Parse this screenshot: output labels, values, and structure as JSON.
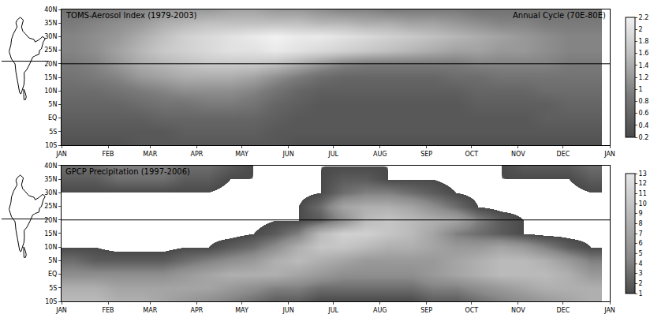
{
  "chart_data": [
    {
      "type": "heatmap",
      "title": "TOMS-Aerosol Index (1979-2003)",
      "subtitle": "Annual Cycle (70E-80E)",
      "x": [
        7.5,
        22.5,
        37.5,
        52.5,
        67.5,
        82.5,
        97.5,
        112.5,
        127.5,
        142.5,
        157.5,
        172.5,
        187.5,
        202.5,
        217.5,
        232.5,
        247.5,
        262.5,
        277.5,
        292.5,
        307.5,
        322.5,
        337.5,
        352.5
      ],
      "y": [
        -10,
        -5,
        0,
        5,
        10,
        15,
        20,
        25,
        30,
        35,
        40
      ],
      "z": [
        [
          0.3,
          0.3,
          0.3,
          0.4,
          0.4,
          0.4,
          0.4,
          0.4,
          0.4,
          0.4,
          0.3,
          0.3,
          0.3,
          0.3,
          0.3,
          0.3,
          0.3,
          0.3,
          0.3,
          0.3,
          0.3,
          0.3,
          0.3,
          0.3
        ],
        [
          0.4,
          0.4,
          0.4,
          0.4,
          0.4,
          0.5,
          0.5,
          0.5,
          0.5,
          0.4,
          0.4,
          0.4,
          0.4,
          0.4,
          0.4,
          0.4,
          0.4,
          0.4,
          0.4,
          0.4,
          0.4,
          0.4,
          0.4,
          0.4
        ],
        [
          0.5,
          0.5,
          0.5,
          0.5,
          0.6,
          0.6,
          0.6,
          0.6,
          0.6,
          0.5,
          0.4,
          0.4,
          0.4,
          0.4,
          0.4,
          0.4,
          0.4,
          0.4,
          0.4,
          0.4,
          0.4,
          0.5,
          0.5,
          0.5
        ],
        [
          0.6,
          0.6,
          0.6,
          0.7,
          0.8,
          0.8,
          0.9,
          0.9,
          0.8,
          0.6,
          0.5,
          0.4,
          0.4,
          0.4,
          0.4,
          0.4,
          0.4,
          0.4,
          0.5,
          0.5,
          0.5,
          0.5,
          0.6,
          0.6
        ],
        [
          0.7,
          0.7,
          0.8,
          0.9,
          1.0,
          1.1,
          1.1,
          1.1,
          1.0,
          0.8,
          0.6,
          0.5,
          0.5,
          0.5,
          0.5,
          0.5,
          0.5,
          0.5,
          0.6,
          0.6,
          0.6,
          0.7,
          0.7,
          0.7
        ],
        [
          0.8,
          0.9,
          1.0,
          1.2,
          1.3,
          1.4,
          1.4,
          1.4,
          1.3,
          1.1,
          0.9,
          0.7,
          0.6,
          0.6,
          0.6,
          0.6,
          0.6,
          0.7,
          0.7,
          0.8,
          0.8,
          0.8,
          0.8,
          0.8
        ],
        [
          0.9,
          1.0,
          1.2,
          1.4,
          1.5,
          1.6,
          1.7,
          1.7,
          1.7,
          1.6,
          1.4,
          1.2,
          1.0,
          0.9,
          0.9,
          0.9,
          0.9,
          0.9,
          1.0,
          1.0,
          1.0,
          1.0,
          0.9,
          0.9
        ],
        [
          1.0,
          1.1,
          1.3,
          1.5,
          1.7,
          1.8,
          1.9,
          2.0,
          2.0,
          2.1,
          2.0,
          1.9,
          1.8,
          1.7,
          1.6,
          1.5,
          1.4,
          1.3,
          1.3,
          1.2,
          1.2,
          1.1,
          1.0,
          1.0
        ],
        [
          1.0,
          1.1,
          1.2,
          1.4,
          1.6,
          1.8,
          1.9,
          2.0,
          2.1,
          2.2,
          2.1,
          2.1,
          2.0,
          1.9,
          1.8,
          1.7,
          1.6,
          1.5,
          1.4,
          1.3,
          1.2,
          1.1,
          1.0,
          1.0
        ],
        [
          0.9,
          1.0,
          1.1,
          1.2,
          1.4,
          1.5,
          1.6,
          1.6,
          1.6,
          1.6,
          1.6,
          1.5,
          1.5,
          1.4,
          1.4,
          1.3,
          1.3,
          1.2,
          1.1,
          1.0,
          1.0,
          0.9,
          0.9,
          0.9
        ],
        [
          0.8,
          0.8,
          0.9,
          1.0,
          1.1,
          1.2,
          1.2,
          1.3,
          1.3,
          1.2,
          1.2,
          1.1,
          1.0,
          1.0,
          0.9,
          0.9,
          0.9,
          0.9,
          0.8,
          0.8,
          0.8,
          0.8,
          0.8,
          0.8
        ]
      ],
      "xlim": [
        0,
        365
      ],
      "xticks": [
        {
          "value": 0,
          "label": "JAN"
        },
        {
          "value": 31,
          "label": "FEB"
        },
        {
          "value": 59,
          "label": "MAR"
        },
        {
          "value": 90,
          "label": "APR"
        },
        {
          "value": 120,
          "label": "MAY"
        },
        {
          "value": 151,
          "label": "JUN"
        },
        {
          "value": 181,
          "label": "JUL"
        },
        {
          "value": 212,
          "label": "AUG"
        },
        {
          "value": 243,
          "label": "SEP"
        },
        {
          "value": 273,
          "label": "OCT"
        },
        {
          "value": 304,
          "label": "NOV"
        },
        {
          "value": 334,
          "label": "DEC"
        },
        {
          "value": 365,
          "label": "JAN"
        }
      ],
      "ylim": [
        -10,
        40
      ],
      "yticks": [
        {
          "value": -10,
          "label": "10S"
        },
        {
          "value": -5,
          "label": "5S"
        },
        {
          "value": 0,
          "label": "EQ"
        },
        {
          "value": 5,
          "label": "5N"
        },
        {
          "value": 10,
          "label": "10N"
        },
        {
          "value": 15,
          "label": "15N"
        },
        {
          "value": 20,
          "label": "20N"
        },
        {
          "value": 25,
          "label": "25N"
        },
        {
          "value": 30,
          "label": "30N"
        },
        {
          "value": 35,
          "label": "35N"
        },
        {
          "value": 40,
          "label": "40N"
        }
      ],
      "colorbar_range": [
        0.2,
        2.2
      ],
      "colorbar_ticks": [
        0.2,
        0.4,
        0.6,
        0.8,
        1,
        1.2,
        1.4,
        1.6,
        1.8,
        2,
        2.2
      ],
      "reference_line": 20
    },
    {
      "type": "heatmap",
      "title": "GPCP Precipitation (1997-2006)",
      "x": [
        7.5,
        22.5,
        37.5,
        52.5,
        67.5,
        82.5,
        97.5,
        112.5,
        127.5,
        142.5,
        157.5,
        172.5,
        187.5,
        202.5,
        217.5,
        232.5,
        247.5,
        262.5,
        277.5,
        292.5,
        307.5,
        322.5,
        337.5,
        352.5
      ],
      "y": [
        -10,
        -5,
        0,
        5,
        10,
        15,
        20,
        25,
        30,
        35,
        40
      ],
      "z": [
        [
          9,
          9,
          8,
          8,
          7,
          6,
          5,
          4,
          3,
          2,
          2,
          1,
          1,
          1,
          1,
          1,
          2,
          2,
          3,
          4,
          5,
          6,
          7,
          8
        ],
        [
          8,
          8,
          7,
          7,
          7,
          7,
          7,
          6,
          5,
          4,
          4,
          3,
          3,
          3,
          3,
          3,
          4,
          4,
          5,
          6,
          7,
          8,
          8,
          8
        ],
        [
          5,
          5,
          5,
          5,
          5,
          6,
          7,
          8,
          8,
          8,
          7,
          6,
          5,
          5,
          5,
          5,
          6,
          7,
          8,
          9,
          9,
          9,
          8,
          6
        ],
        [
          3,
          2,
          2,
          2,
          2,
          3,
          4,
          5,
          6,
          8,
          9,
          8,
          7,
          6,
          6,
          6,
          6,
          7,
          8,
          9,
          9,
          8,
          6,
          4
        ],
        [
          1,
          1,
          0.5,
          0.5,
          0.5,
          1,
          1,
          2,
          3,
          5,
          8,
          10,
          10,
          9,
          8,
          8,
          7,
          6,
          6,
          7,
          6,
          4,
          2,
          1
        ],
        [
          0.5,
          0.5,
          0.5,
          0.5,
          0.5,
          0.5,
          0.5,
          0.5,
          1,
          2,
          4,
          9,
          11,
          11,
          10,
          9,
          7,
          4,
          3,
          2,
          1,
          0.5,
          0.5,
          0.5
        ],
        [
          0.5,
          0.5,
          0.5,
          0.5,
          0.5,
          0.5,
          0.5,
          0.5,
          0.5,
          1,
          1,
          2,
          5,
          9,
          10,
          9,
          8,
          7,
          4,
          2,
          1,
          0.5,
          0.5,
          0.5
        ],
        [
          0.5,
          0.5,
          0.5,
          0.5,
          0.5,
          0.5,
          0.5,
          0.5,
          0.5,
          0.5,
          1,
          3,
          7,
          8,
          8,
          7,
          5,
          3,
          1,
          0.5,
          0.5,
          0.5,
          0.5,
          0.5
        ],
        [
          1,
          1,
          1,
          1,
          1,
          1,
          1,
          0.5,
          0.5,
          0.5,
          0.5,
          1,
          3,
          4,
          4,
          3,
          2,
          1,
          0.5,
          0.5,
          0.5,
          0.5,
          0.5,
          1
        ],
        [
          2,
          2,
          3,
          3,
          3,
          2,
          2,
          1,
          1,
          0.5,
          0.5,
          1,
          2,
          2,
          1,
          1,
          1,
          0.5,
          0.5,
          1,
          1,
          1,
          1,
          2
        ],
        [
          3,
          3,
          4,
          4,
          4,
          3,
          3,
          2,
          1,
          1,
          1,
          1,
          1,
          1,
          1,
          1,
          1,
          1,
          1,
          1,
          2,
          2,
          2,
          3
        ]
      ],
      "xlim": [
        0,
        365
      ],
      "xticks": [
        {
          "value": 0,
          "label": "JAN"
        },
        {
          "value": 31,
          "label": "FEB"
        },
        {
          "value": 59,
          "label": "MAR"
        },
        {
          "value": 90,
          "label": "APR"
        },
        {
          "value": 120,
          "label": "MAY"
        },
        {
          "value": 151,
          "label": "JUN"
        },
        {
          "value": 181,
          "label": "JUL"
        },
        {
          "value": 212,
          "label": "AUG"
        },
        {
          "value": 243,
          "label": "SEP"
        },
        {
          "value": 273,
          "label": "OCT"
        },
        {
          "value": 304,
          "label": "NOV"
        },
        {
          "value": 334,
          "label": "DEC"
        },
        {
          "value": 365,
          "label": "JAN"
        }
      ],
      "ylim": [
        -10,
        40
      ],
      "yticks": [
        {
          "value": -10,
          "label": "10S"
        },
        {
          "value": -5,
          "label": "5S"
        },
        {
          "value": 0,
          "label": "EQ"
        },
        {
          "value": 5,
          "label": "5N"
        },
        {
          "value": 10,
          "label": "10N"
        },
        {
          "value": 15,
          "label": "15N"
        },
        {
          "value": 20,
          "label": "20N"
        },
        {
          "value": 25,
          "label": "25N"
        },
        {
          "value": 30,
          "label": "30N"
        },
        {
          "value": 35,
          "label": "35N"
        },
        {
          "value": 40,
          "label": "40N"
        }
      ],
      "colorbar_range": [
        1,
        13
      ],
      "colorbar_ticks": [
        1,
        2,
        3,
        4,
        5,
        6,
        7,
        8,
        9,
        10,
        11,
        12,
        13
      ],
      "reference_line": 20
    }
  ]
}
